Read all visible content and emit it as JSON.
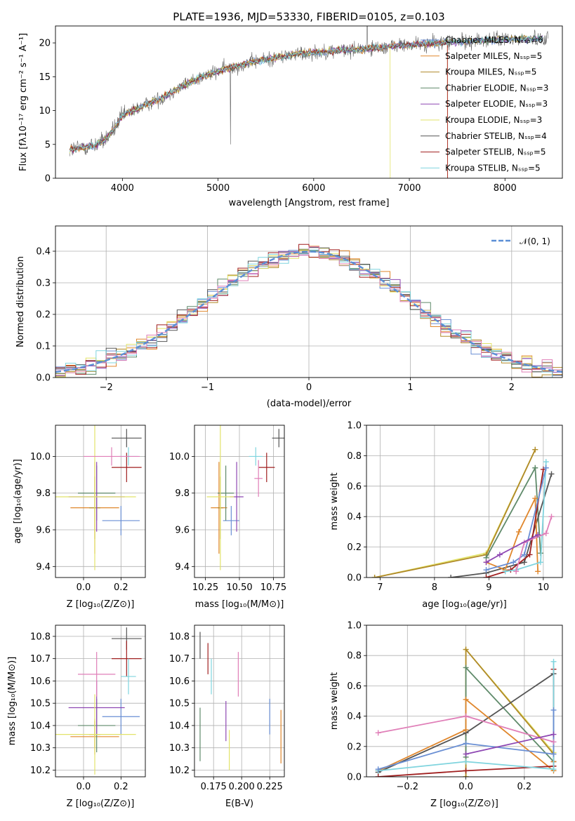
{
  "colors": {
    "chabrier_miles": "#6a8fd4",
    "salpeter_miles": "#e0872d",
    "kroupa_miles": "#b08a2a",
    "chabrier_elodie": "#5f8a6a",
    "salpeter_elodie": "#8e47b3",
    "kroupa_elodie": "#e2e36a",
    "chabrier_stelib": "#555555",
    "salpeter_stelib": "#a01f1f",
    "kroupa_stelib": "#7fd4de",
    "pink": "#e07fb8",
    "teal": "#69c0c0",
    "normal": "#5b8fd6"
  },
  "chart_data": [
    {
      "id": "spectrum",
      "type": "line",
      "title": "PLATE=1936, MJD=53330, FIBERID=0105, z=0.103",
      "xlabel": "wavelength [Angstrom, rest frame]",
      "ylabel": "Flux [fλ10⁻¹⁷ erg cm⁻² s⁻¹ A⁻¹]",
      "xlim": [
        3300,
        8600
      ],
      "ylim": [
        0,
        22.5
      ],
      "xticks": [
        "4000",
        "5000",
        "6000",
        "7000",
        "8000"
      ],
      "yticks": [
        "0",
        "5",
        "10",
        "15",
        "20"
      ],
      "legend_position": "top-right",
      "series": [
        {
          "name": "Chabrier MILES, Nₛₛₚ=6",
          "color_key": "chabrier_miles"
        },
        {
          "name": "Salpeter MILES, Nₛₛₚ=5",
          "color_key": "salpeter_miles"
        },
        {
          "name": "Kroupa MILES, Nₛₛₚ=5",
          "color_key": "kroupa_miles"
        },
        {
          "name": "Chabrier ELODIE, Nₛₛₚ=3",
          "color_key": "chabrier_elodie"
        },
        {
          "name": "Salpeter ELODIE, Nₛₛₚ=3",
          "color_key": "salpeter_elodie"
        },
        {
          "name": "Kroupa ELODIE, Nₛₛₚ=3",
          "color_key": "kroupa_elodie"
        },
        {
          "name": "Chabrier STELIB, Nₛₛₚ=4",
          "color_key": "chabrier_stelib"
        },
        {
          "name": "Salpeter STELIB, Nₛₛₚ=5",
          "color_key": "salpeter_stelib"
        },
        {
          "name": "Kroupa STELIB, Nₛₛₚ=5",
          "color_key": "kroupa_stelib"
        }
      ],
      "continuum": {
        "x": [
          3450,
          3600,
          3700,
          3800,
          3900,
          4000,
          4200,
          4400,
          4600,
          4800,
          5000,
          5200,
          5400,
          5600,
          5800,
          6000,
          6200,
          6400,
          6600,
          6800,
          7000,
          7200,
          7400,
          7600,
          7800,
          8000,
          8200,
          8400
        ],
        "y": [
          4.2,
          4.6,
          4.8,
          5.5,
          7.0,
          9.2,
          10.6,
          11.8,
          13.4,
          14.8,
          15.8,
          16.6,
          17.3,
          17.8,
          18.3,
          18.6,
          18.8,
          19.0,
          19.2,
          19.5,
          19.7,
          19.9,
          20.1,
          20.2,
          20.4,
          20.5,
          20.6,
          20.7
        ]
      }
    },
    {
      "id": "residuals",
      "type": "histogram",
      "xlabel": "(data-model)/error",
      "ylabel": "Normed distribution",
      "xlim": [
        -2.5,
        2.5
      ],
      "ylim": [
        0,
        0.48
      ],
      "xticks": [
        "−2",
        "−1",
        "0",
        "1",
        "2"
      ],
      "yticks": [
        "0.0",
        "0.1",
        "0.2",
        "0.3",
        "0.4"
      ],
      "bin_width": 0.1,
      "legend_label": "𝒩(0, 1)",
      "legend_position": "top-right",
      "grid": true
    },
    {
      "id": "age_vs_Z",
      "type": "errorbar",
      "xlabel": "Z [log₁₀(Z/Z⊙)]",
      "ylabel": "age  [log₁₀(age/yr)]",
      "xlim": [
        -0.15,
        0.33
      ],
      "ylim": [
        9.34,
        10.17
      ],
      "xticks": [
        "0.0",
        "0.2"
      ],
      "yticks": [
        "9.4",
        "9.6",
        "9.8",
        "10.0"
      ],
      "points": [
        {
          "x": 0.2,
          "xerr": 0.1,
          "y": 9.65,
          "yerr": 0.08,
          "color_key": "chabrier_miles"
        },
        {
          "x": 0.06,
          "xerr": 0.13,
          "y": 9.72,
          "yerr": 0.25,
          "color_key": "salpeter_miles"
        },
        {
          "x": 0.06,
          "xerr": 0.03,
          "y": 9.72,
          "yerr": 0.17,
          "color_key": "kroupa_miles"
        },
        {
          "x": 0.07,
          "xerr": 0.1,
          "y": 9.8,
          "yerr": 0.15,
          "color_key": "chabrier_elodie"
        },
        {
          "x": 0.07,
          "xerr": 0.15,
          "y": 9.78,
          "yerr": 0.19,
          "color_key": "salpeter_elodie"
        },
        {
          "x": 0.06,
          "xerr": 0.22,
          "y": 9.78,
          "yerr": 0.4,
          "color_key": "kroupa_elodie"
        },
        {
          "x": 0.23,
          "xerr": 0.08,
          "y": 10.1,
          "yerr": 0.05,
          "color_key": "chabrier_stelib"
        },
        {
          "x": 0.23,
          "xerr": 0.08,
          "y": 9.94,
          "yerr": 0.08,
          "color_key": "salpeter_stelib"
        },
        {
          "x": 0.24,
          "xerr": 0.05,
          "y": 10.0,
          "yerr": 0.05,
          "color_key": "kroupa_stelib"
        },
        {
          "x": 0.15,
          "xerr": 0.15,
          "y": 10.0,
          "yerr": 0.05,
          "color_key": "pink"
        }
      ]
    },
    {
      "id": "age_vs_mass",
      "type": "errorbar",
      "xlabel": "mass [log₁₀(M/M⊙)]",
      "ylabel": "",
      "xlim": [
        10.17,
        10.83
      ],
      "ylim": [
        9.34,
        10.17
      ],
      "xticks": [
        "10.25",
        "10.50",
        "10.75"
      ],
      "yticks": [
        "9.4",
        "9.6",
        "9.8",
        "10.0"
      ],
      "points": [
        {
          "x": 10.44,
          "xerr": 0.06,
          "y": 9.65,
          "yerr": 0.08,
          "color_key": "chabrier_miles"
        },
        {
          "x": 10.35,
          "xerr": 0.06,
          "y": 9.72,
          "yerr": 0.25,
          "color_key": "salpeter_miles"
        },
        {
          "x": 10.36,
          "xerr": 0.02,
          "y": 9.72,
          "yerr": 0.17,
          "color_key": "kroupa_miles"
        },
        {
          "x": 10.4,
          "xerr": 0.06,
          "y": 9.8,
          "yerr": 0.15,
          "color_key": "chabrier_elodie"
        },
        {
          "x": 10.48,
          "xerr": 0.05,
          "y": 9.78,
          "yerr": 0.19,
          "color_key": "salpeter_elodie"
        },
        {
          "x": 10.36,
          "xerr": 0.1,
          "y": 9.78,
          "yerr": 0.4,
          "color_key": "kroupa_elodie"
        },
        {
          "x": 10.79,
          "xerr": 0.05,
          "y": 10.1,
          "yerr": 0.05,
          "color_key": "chabrier_stelib"
        },
        {
          "x": 10.7,
          "xerr": 0.06,
          "y": 9.94,
          "yerr": 0.08,
          "color_key": "salpeter_stelib"
        },
        {
          "x": 10.62,
          "xerr": 0.05,
          "y": 10.0,
          "yerr": 0.05,
          "color_key": "kroupa_stelib"
        },
        {
          "x": 10.64,
          "xerr": 0.03,
          "y": 9.88,
          "yerr": 0.1,
          "color_key": "pink"
        }
      ]
    },
    {
      "id": "massweight_vs_age",
      "type": "line",
      "xlabel": "age  [log₁₀(age/yr)]",
      "ylabel": "mass weight",
      "xlim": [
        6.75,
        10.35
      ],
      "ylim": [
        0,
        1.0
      ],
      "xticks": [
        "7",
        "8",
        "9",
        "10"
      ],
      "yticks": [
        "0.0",
        "0.2",
        "0.4",
        "0.6",
        "0.8",
        "1.0"
      ],
      "series": [
        {
          "color_key": "kroupa_elodie",
          "x": [
            6.9,
            8.95,
            9.85
          ],
          "y": [
            0.0,
            0.16,
            0.84
          ]
        },
        {
          "color_key": "kroupa_miles",
          "x": [
            6.9,
            8.95,
            9.85
          ],
          "y": [
            0.0,
            0.15,
            0.84
          ]
        },
        {
          "color_key": "chabrier_elodie",
          "x": [
            8.95,
            9.85,
            9.95
          ],
          "y": [
            0.13,
            0.72,
            0.16
          ]
        },
        {
          "color_key": "chabrier_stelib",
          "x": [
            8.3,
            8.95,
            9.65,
            10.15
          ],
          "y": [
            0.0,
            0.03,
            0.1,
            0.68
          ]
        },
        {
          "color_key": "salpeter_miles",
          "x": [
            8.95,
            9.3,
            9.55,
            9.85,
            9.9
          ],
          "y": [
            0.1,
            0.05,
            0.3,
            0.52,
            0.04
          ]
        },
        {
          "color_key": "salpeter_stelib",
          "x": [
            8.95,
            9.4,
            9.75,
            10.0
          ],
          "y": [
            0.0,
            0.05,
            0.15,
            0.71
          ]
        },
        {
          "color_key": "kroupa_stelib",
          "x": [
            9.3,
            9.5,
            9.95,
            10.05
          ],
          "y": [
            0.04,
            0.05,
            0.1,
            0.76
          ]
        },
        {
          "color_key": "chabrier_miles",
          "x": [
            8.95,
            9.45,
            9.65,
            10.05
          ],
          "y": [
            0.05,
            0.1,
            0.15,
            0.72
          ]
        },
        {
          "color_key": "pink",
          "x": [
            9.5,
            9.65,
            10.05,
            10.15
          ],
          "y": [
            0.04,
            0.23,
            0.29,
            0.4
          ]
        },
        {
          "color_key": "salpeter_elodie",
          "x": [
            8.95,
            9.2,
            9.9
          ],
          "y": [
            0.1,
            0.15,
            0.28
          ]
        }
      ]
    },
    {
      "id": "mass_vs_Z",
      "type": "errorbar",
      "xlabel": "Z [log₁₀(Z/Z⊙)]",
      "ylabel": "mass [log₁₀(M/M⊙)]",
      "xlim": [
        -0.15,
        0.33
      ],
      "ylim": [
        10.17,
        10.85
      ],
      "xticks": [
        "0.0",
        "0.2"
      ],
      "yticks": [
        "10.2",
        "10.3",
        "10.4",
        "10.5",
        "10.6",
        "10.7",
        "10.8"
      ],
      "points": [
        {
          "x": 0.2,
          "xerr": 0.1,
          "y": 10.44,
          "yerr": 0.08,
          "color_key": "chabrier_miles"
        },
        {
          "x": 0.06,
          "xerr": 0.13,
          "y": 10.35,
          "yerr": 0.08,
          "color_key": "salpeter_miles"
        },
        {
          "x": 0.06,
          "xerr": 0.03,
          "y": 10.36,
          "yerr": 0.06,
          "color_key": "kroupa_miles"
        },
        {
          "x": 0.07,
          "xerr": 0.1,
          "y": 10.4,
          "yerr": 0.12,
          "color_key": "chabrier_elodie"
        },
        {
          "x": 0.07,
          "xerr": 0.15,
          "y": 10.48,
          "yerr": 0.12,
          "color_key": "salpeter_elodie"
        },
        {
          "x": 0.06,
          "xerr": 0.22,
          "y": 10.36,
          "yerr": 0.18,
          "color_key": "kroupa_elodie"
        },
        {
          "x": 0.23,
          "xerr": 0.08,
          "y": 10.79,
          "yerr": 0.05,
          "color_key": "chabrier_stelib"
        },
        {
          "x": 0.23,
          "xerr": 0.08,
          "y": 10.7,
          "yerr": 0.08,
          "color_key": "salpeter_stelib"
        },
        {
          "x": 0.24,
          "xerr": 0.04,
          "y": 10.62,
          "yerr": 0.08,
          "color_key": "kroupa_stelib"
        },
        {
          "x": 0.07,
          "xerr": 0.1,
          "y": 10.63,
          "yerr": 0.1,
          "color_key": "pink"
        }
      ]
    },
    {
      "id": "mass_vs_ebv",
      "type": "errorbar",
      "xlabel": "E(B-V)",
      "ylabel": "",
      "xlim": [
        0.158,
        0.238
      ],
      "ylim": [
        10.17,
        10.85
      ],
      "xticks": [
        "0.175",
        "0.200",
        "0.225"
      ],
      "yticks": [
        "10.2",
        "10.3",
        "10.4",
        "10.5",
        "10.6",
        "10.7",
        "10.8"
      ],
      "points": [
        {
          "x": 0.225,
          "y": 10.44,
          "yerr": 0.08,
          "color_key": "chabrier_miles"
        },
        {
          "x": 0.235,
          "y": 10.35,
          "yerr": 0.12,
          "color_key": "salpeter_miles"
        },
        {
          "x": 0.163,
          "y": 10.36,
          "yerr": 0.12,
          "color_key": "chabrier_elodie"
        },
        {
          "x": 0.186,
          "y": 10.42,
          "yerr": 0.09,
          "color_key": "salpeter_elodie"
        },
        {
          "x": 0.189,
          "y": 10.29,
          "yerr": 0.09,
          "color_key": "kroupa_elodie"
        },
        {
          "x": 0.163,
          "y": 10.76,
          "yerr": 0.06,
          "color_key": "chabrier_stelib"
        },
        {
          "x": 0.17,
          "y": 10.7,
          "yerr": 0.07,
          "color_key": "salpeter_stelib"
        },
        {
          "x": 0.173,
          "y": 10.62,
          "yerr": 0.08,
          "color_key": "kroupa_stelib"
        },
        {
          "x": 0.197,
          "y": 10.63,
          "yerr": 0.1,
          "color_key": "pink"
        }
      ]
    },
    {
      "id": "massweight_vs_Z",
      "type": "line",
      "xlabel": "Z [log₁₀(Z/Z⊙)]",
      "ylabel": "mass weight",
      "xlim": [
        -0.34,
        0.33
      ],
      "ylim": [
        0,
        1.0
      ],
      "xticks": [
        "−0.2",
        "0.0",
        "0.2"
      ],
      "yticks": [
        "0.0",
        "0.2",
        "0.4",
        "0.6",
        "0.8",
        "1.0"
      ],
      "series": [
        {
          "color_key": "kroupa_elodie",
          "x": [
            0.0,
            0.0,
            0.3
          ],
          "y": [
            0.0,
            0.84,
            0.16
          ]
        },
        {
          "color_key": "kroupa_miles",
          "x": [
            0.0,
            0.0,
            0.3
          ],
          "y": [
            0.0,
            0.84,
            0.15
          ]
        },
        {
          "color_key": "chabrier_elodie",
          "x": [
            0.0,
            0.0,
            0.3
          ],
          "y": [
            0.13,
            0.72,
            0.1
          ]
        },
        {
          "color_key": "chabrier_stelib",
          "x": [
            -0.3,
            0.0,
            0.3,
            0.3
          ],
          "y": [
            0.03,
            0.29,
            0.68,
            0.1
          ]
        },
        {
          "color_key": "salpeter_miles",
          "x": [
            -0.3,
            0.0,
            0.0,
            0.3,
            0.3
          ],
          "y": [
            0.04,
            0.31,
            0.51,
            0.04,
            0.1
          ]
        },
        {
          "color_key": "salpeter_stelib",
          "x": [
            -0.3,
            0.0,
            0.3,
            0.3
          ],
          "y": [
            0.0,
            0.04,
            0.07,
            0.71
          ]
        },
        {
          "color_key": "kroupa_stelib",
          "x": [
            -0.3,
            0.0,
            0.3,
            0.3
          ],
          "y": [
            0.04,
            0.1,
            0.05,
            0.76
          ]
        },
        {
          "color_key": "chabrier_miles",
          "x": [
            -0.3,
            0.0,
            0.3,
            0.3
          ],
          "y": [
            0.05,
            0.22,
            0.15,
            0.44
          ]
        },
        {
          "color_key": "pink",
          "x": [
            -0.3,
            0.0,
            0.3
          ],
          "y": [
            0.29,
            0.4,
            0.23
          ]
        },
        {
          "color_key": "salpeter_elodie",
          "x": [
            0.0,
            0.3
          ],
          "y": [
            0.15,
            0.28
          ]
        }
      ]
    }
  ]
}
